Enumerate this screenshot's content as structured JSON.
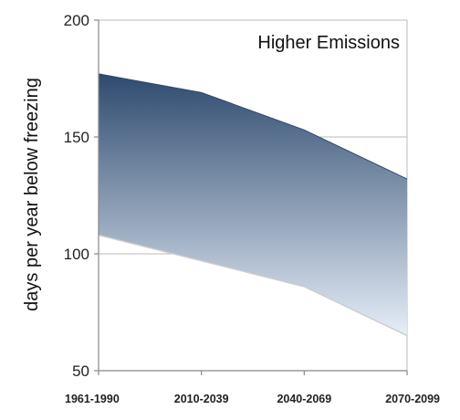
{
  "chart_data": {
    "type": "area",
    "title": "",
    "annotation": "Higher Emissions",
    "xlabel": "",
    "ylabel": "days per year below freezing",
    "categories": [
      "1961-1990",
      "2010-2039",
      "2040-2069",
      "2070-2099"
    ],
    "series": [
      {
        "values": [
          177,
          169,
          153,
          132
        ]
      },
      {
        "values": [
          108,
          97,
          86,
          65
        ]
      }
    ],
    "ylim": [
      50,
      200
    ],
    "yticks": [
      50,
      100,
      150,
      200
    ],
    "grid": true,
    "legend": "none",
    "colors": {
      "fill_top": "#2e4a6e",
      "fill_bottom": "#e6eef8",
      "grid": "#bbbbbb",
      "axis": "#888888",
      "lower_edge": "#cccccc"
    }
  }
}
